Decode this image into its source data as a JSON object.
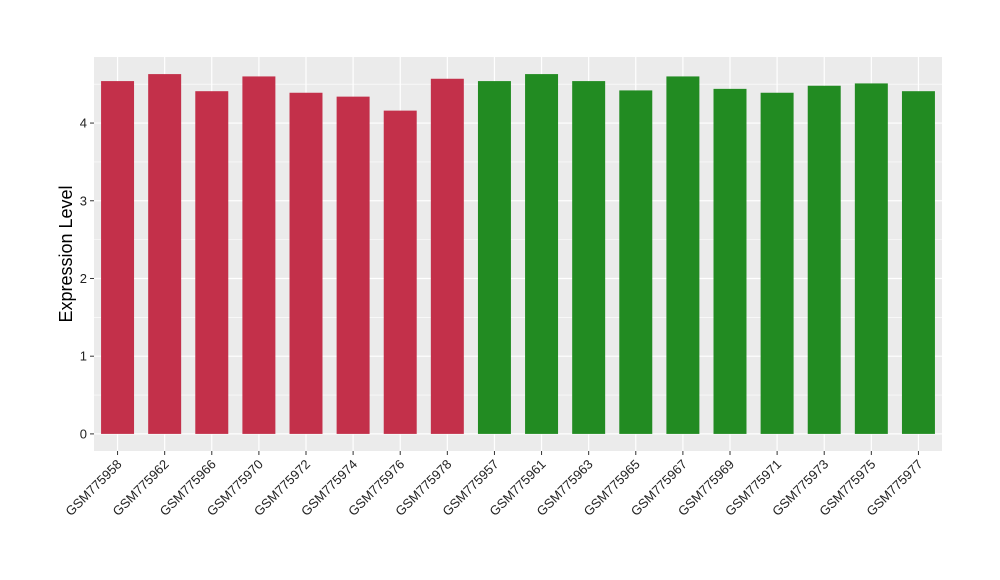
{
  "chart_data": {
    "type": "bar",
    "title": "",
    "xlabel": "",
    "ylabel": "Expression Level",
    "ylim": [
      -0.22,
      4.85
    ],
    "yticks": [
      "0",
      "1",
      "2",
      "3",
      "4"
    ],
    "grid": true,
    "legend": "none",
    "panel_background": "#ebebeb",
    "categories": [
      "GSM775958",
      "GSM775962",
      "GSM775966",
      "GSM775970",
      "GSM775972",
      "GSM775974",
      "GSM775976",
      "GSM775978",
      "GSM775957",
      "GSM775961",
      "GSM775963",
      "GSM775965",
      "GSM775967",
      "GSM775969",
      "GSM775971",
      "GSM775973",
      "GSM775975",
      "GSM775977"
    ],
    "values": [
      4.54,
      4.63,
      4.41,
      4.6,
      4.39,
      4.34,
      4.16,
      4.57,
      4.54,
      4.63,
      4.54,
      4.42,
      4.6,
      4.44,
      4.39,
      4.48,
      4.51,
      4.41
    ],
    "bar_colors": [
      "#c3304a",
      "#c3304a",
      "#c3304a",
      "#c3304a",
      "#c3304a",
      "#c3304a",
      "#c3304a",
      "#c3304a",
      "#228b22",
      "#228b22",
      "#228b22",
      "#228b22",
      "#228b22",
      "#228b22",
      "#228b22",
      "#228b22",
      "#228b22",
      "#228b22"
    ]
  }
}
